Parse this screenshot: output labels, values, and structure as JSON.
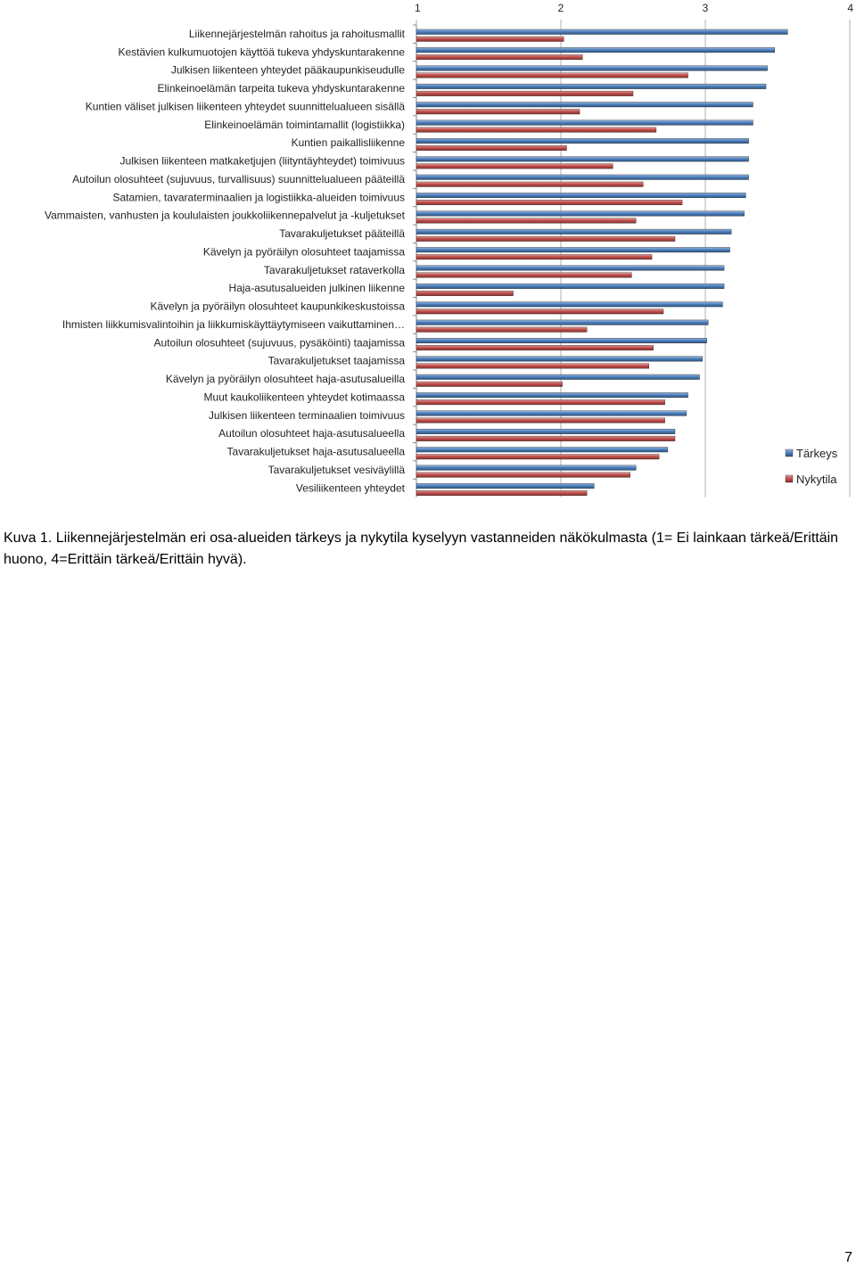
{
  "chart_data": {
    "type": "bar",
    "orientation": "horizontal",
    "categories": [
      "Liikennejärjestelmän rahoitus ja rahoitusmallit",
      "Kestävien kulkumuotojen käyttöä tukeva yhdyskuntarakenne",
      "Julkisen liikenteen yhteydet pääkaupunkiseudulle",
      "Elinkeinoelämän tarpeita tukeva yhdyskuntarakenne",
      "Kuntien väliset julkisen liikenteen yhteydet suunnittelualueen sisällä",
      "Elinkeinoelämän toimintamallit (logistiikka)",
      "Kuntien paikallisliikenne",
      "Julkisen liikenteen matkaketjujen (liityntäyhteydet) toimivuus",
      "Autoilun olosuhteet (sujuvuus, turvallisuus) suunnittelualueen pääteillä",
      "Satamien, tavaraterminaalien ja logistiikka-alueiden toimivuus",
      "Vammaisten, vanhusten ja koululaisten joukkoliikennepalvelut ja -kuljetukset",
      "Tavarakuljetukset pääteillä",
      "Kävelyn ja pyöräilyn olosuhteet taajamissa",
      "Tavarakuljetukset rataverkolla",
      "Haja-asutusalueiden julkinen liikenne",
      "Kävelyn ja pyöräilyn olosuhteet kaupunkikeskustoissa",
      "Ihmisten liikkumisvalintoihin ja liikkumiskäyttäytymiseen vaikuttaminen…",
      "Autoilun olosuhteet (sujuvuus, pysäköinti) taajamissa",
      "Tavarakuljetukset taajamissa",
      "Kävelyn ja pyöräilyn olosuhteet haja-asutusalueilla",
      "Muut kaukoliikenteen yhteydet kotimaassa",
      "Julkisen liikenteen terminaalien toimivuus",
      "Autoilun olosuhteet haja-asutusalueella",
      "Tavarakuljetukset haja-asutusalueella",
      "Tavarakuljetukset vesiväylillä",
      "Vesiliikenteen yhteydet"
    ],
    "series": [
      {
        "name": "Tärkeys",
        "color": "#4a7ebb",
        "values": [
          3.57,
          3.48,
          3.43,
          3.42,
          3.33,
          3.33,
          3.3,
          3.3,
          3.3,
          3.28,
          3.27,
          3.18,
          3.17,
          3.13,
          3.13,
          3.12,
          3.02,
          3.01,
          2.98,
          2.96,
          2.88,
          2.87,
          2.79,
          2.74,
          2.52,
          2.23
        ]
      },
      {
        "name": "Nykytila",
        "color": "#c0504d",
        "values": [
          2.02,
          2.15,
          2.88,
          2.5,
          2.13,
          2.66,
          2.04,
          2.36,
          2.57,
          2.84,
          2.52,
          2.79,
          2.63,
          2.49,
          1.67,
          2.71,
          2.18,
          2.64,
          2.61,
          2.01,
          2.72,
          2.72,
          2.79,
          2.68,
          2.48,
          2.18
        ]
      }
    ],
    "xlim": [
      1,
      4
    ],
    "xticks": [
      "1",
      "2",
      "3",
      "4"
    ],
    "xaxis_position": "top",
    "grid": "vertical",
    "legend_position": "right"
  },
  "caption": "Kuva 1. Liikennejärjestelmän eri osa-alueiden tärkeys ja nykytila kyselyyn vastanneiden näkökulmasta (1= Ei lainkaan tärkeä/Erittäin huono, 4=Erittäin tärkeä/Erittäin hyvä).",
  "page_number": "7"
}
